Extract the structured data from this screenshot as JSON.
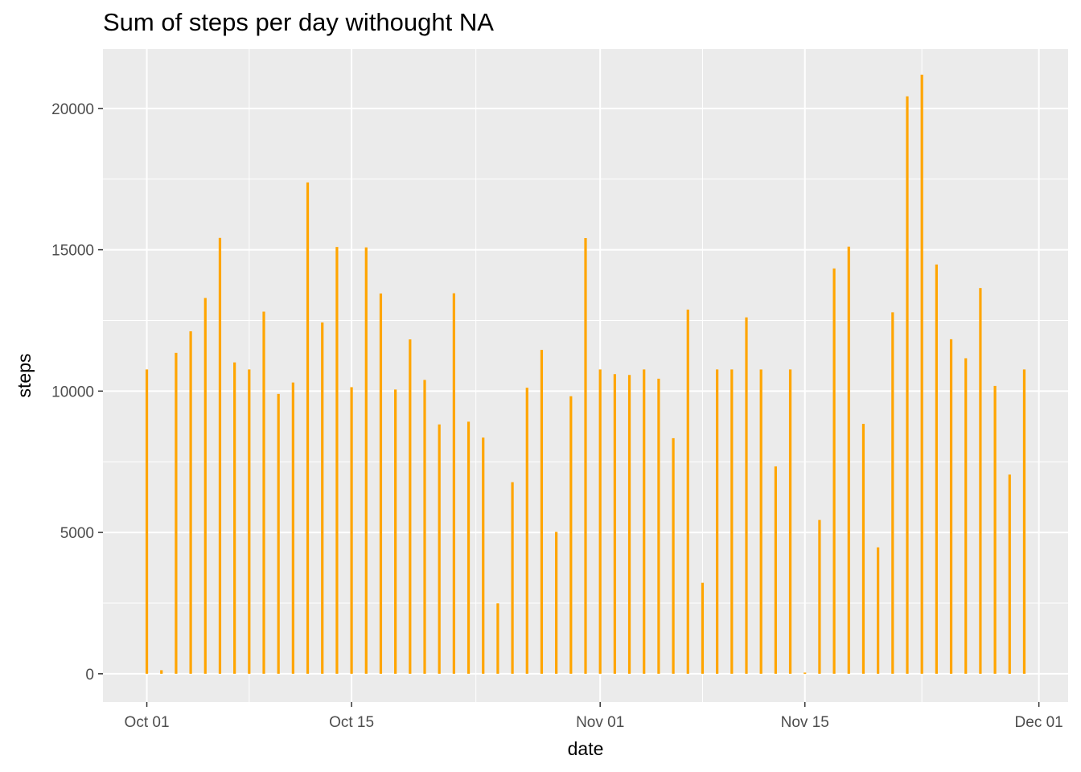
{
  "chart_data": {
    "type": "bar",
    "title": "Sum of steps per day withought NA",
    "xlabel": "date",
    "ylabel": "steps",
    "x_axis": "date",
    "xlim": [
      "2012-09-28",
      "2012-12-03"
    ],
    "ylim": [
      -1000,
      22100
    ],
    "x_ticks": [
      {
        "date": "2012-10-01",
        "label": "Oct 01"
      },
      {
        "date": "2012-10-15",
        "label": "Oct 15"
      },
      {
        "date": "2012-11-01",
        "label": "Nov 01"
      },
      {
        "date": "2012-11-15",
        "label": "Nov 15"
      },
      {
        "date": "2012-12-01",
        "label": "Dec 01"
      }
    ],
    "y_ticks": [
      0,
      5000,
      10000,
      15000,
      20000
    ],
    "grid": true,
    "bar_color": "#FFA500",
    "panel_background": "#EBEBEB",
    "grid_color": "#FFFFFF",
    "x": [
      "2012-10-01",
      "2012-10-02",
      "2012-10-03",
      "2012-10-04",
      "2012-10-05",
      "2012-10-06",
      "2012-10-07",
      "2012-10-08",
      "2012-10-09",
      "2012-10-10",
      "2012-10-11",
      "2012-10-12",
      "2012-10-13",
      "2012-10-14",
      "2012-10-15",
      "2012-10-16",
      "2012-10-17",
      "2012-10-18",
      "2012-10-19",
      "2012-10-20",
      "2012-10-21",
      "2012-10-22",
      "2012-10-23",
      "2012-10-24",
      "2012-10-25",
      "2012-10-26",
      "2012-10-27",
      "2012-10-28",
      "2012-10-29",
      "2012-10-30",
      "2012-10-31",
      "2012-11-01",
      "2012-11-02",
      "2012-11-03",
      "2012-11-04",
      "2012-11-05",
      "2012-11-06",
      "2012-11-07",
      "2012-11-08",
      "2012-11-09",
      "2012-11-10",
      "2012-11-11",
      "2012-11-12",
      "2012-11-13",
      "2012-11-14",
      "2012-11-15",
      "2012-11-16",
      "2012-11-17",
      "2012-11-18",
      "2012-11-19",
      "2012-11-20",
      "2012-11-21",
      "2012-11-22",
      "2012-11-23",
      "2012-11-24",
      "2012-11-25",
      "2012-11-26",
      "2012-11-27",
      "2012-11-28",
      "2012-11-29",
      "2012-11-30"
    ],
    "values": [
      10766,
      126,
      11352,
      12116,
      13294,
      15420,
      11015,
      10766,
      12811,
      9900,
      10304,
      17382,
      12426,
      15098,
      10139,
      15084,
      13452,
      10056,
      11829,
      10395,
      8821,
      13460,
      8918,
      8355,
      2492,
      6778,
      10119,
      11458,
      5018,
      9819,
      15414,
      10766,
      10600,
      10571,
      10766,
      10439,
      8334,
      12883,
      3219,
      10766,
      10766,
      12608,
      10765,
      7336,
      10766,
      41,
      5441,
      14339,
      15110,
      8841,
      4472,
      12787,
      20427,
      21194,
      14478,
      11834,
      11162,
      13646,
      10183,
      7047,
      10766
    ]
  }
}
